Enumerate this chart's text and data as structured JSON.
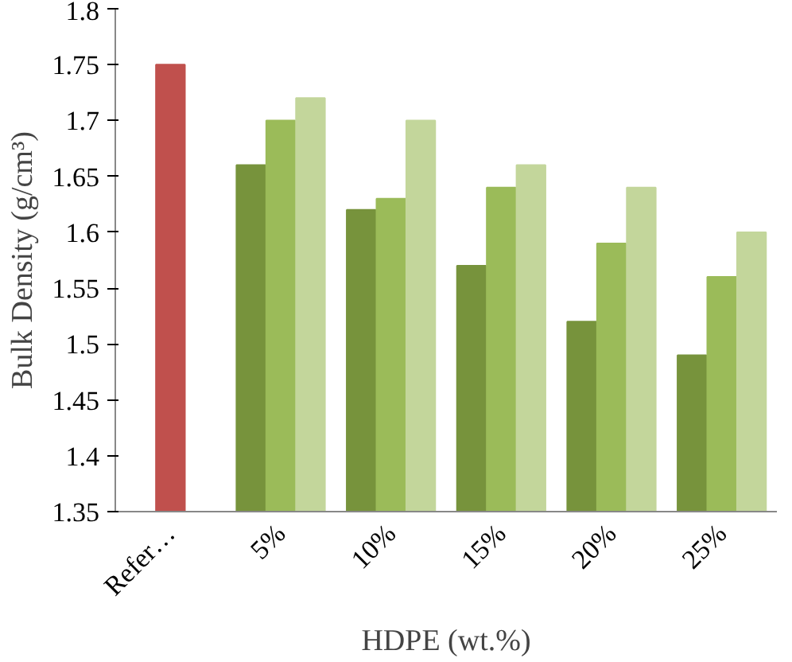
{
  "chart_data": {
    "type": "bar",
    "xlabel": "HDPE (wt.%)",
    "ylabel": "Bulk Density (g/cm³)",
    "categories": [
      "Refer…",
      "5%",
      "10%",
      "15%",
      "20%",
      "25%"
    ],
    "series": [
      {
        "color": "#c0504d",
        "values": [
          1.75,
          null,
          null,
          null,
          null,
          null
        ]
      },
      {
        "color": "#77933c",
        "values": [
          null,
          1.66,
          1.62,
          1.57,
          1.52,
          1.49
        ]
      },
      {
        "color": "#9bbb59",
        "values": [
          null,
          1.7,
          1.63,
          1.64,
          1.59,
          1.56
        ]
      },
      {
        "color": "#c3d69b",
        "values": [
          null,
          1.72,
          1.7,
          1.66,
          1.64,
          1.6
        ]
      }
    ],
    "ylim": [
      1.35,
      1.8
    ],
    "yticks": [
      1.35,
      1.4,
      1.45,
      1.5,
      1.55,
      1.6,
      1.65,
      1.7,
      1.75,
      1.8
    ],
    "grid": false
  }
}
